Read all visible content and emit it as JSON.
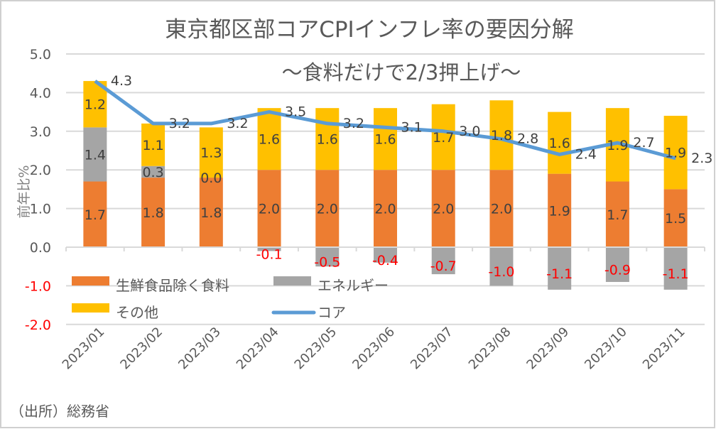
{
  "chart_data": {
    "type": "bar",
    "stacked": true,
    "title": "東京都区部コアCPIインフレ率の要因分解",
    "subtitle": "～食料だけで2/3押上げ～",
    "ylabel": "前年比%",
    "xlabel": "",
    "ylim": [
      -2.0,
      5.0
    ],
    "yticks": [
      "5.0",
      "4.0",
      "3.0",
      "2.0",
      "1.0",
      "0.0",
      "-1.0",
      "-2.0"
    ],
    "ytick_values": [
      5,
      4,
      3,
      2,
      1,
      0,
      -1,
      -2
    ],
    "negative_tick_color": "#FF0000",
    "grid": true,
    "legend_position": "bottom-left inside plot",
    "categories": [
      "2023/01",
      "2023/02",
      "2023/03",
      "2023/04",
      "2023/05",
      "2023/06",
      "2023/07",
      "2023/08",
      "2023/09",
      "2023/10",
      "2023/11"
    ],
    "series": [
      {
        "name": "生鮮食品除く食料",
        "kind": "bar",
        "color": "#ED7D31",
        "values": [
          1.7,
          1.8,
          1.8,
          2.0,
          2.0,
          2.0,
          2.0,
          2.0,
          1.9,
          1.7,
          1.5
        ]
      },
      {
        "name": "エネルギー",
        "kind": "bar",
        "color": "#A5A5A5",
        "values": [
          1.4,
          0.3,
          0.0,
          -0.1,
          -0.5,
          -0.4,
          -0.7,
          -1.0,
          -1.1,
          -0.9,
          -1.1
        ]
      },
      {
        "name": "その他",
        "kind": "bar",
        "color": "#FFC000",
        "values": [
          1.2,
          1.1,
          1.3,
          1.6,
          1.6,
          1.6,
          1.7,
          1.8,
          1.6,
          1.9,
          1.9
        ]
      },
      {
        "name": "コア",
        "kind": "line",
        "color": "#5B9BD5",
        "values": [
          4.3,
          3.2,
          3.2,
          3.5,
          3.2,
          3.1,
          3.0,
          2.8,
          2.4,
          2.7,
          2.3
        ]
      }
    ],
    "source_note": "（出所）総務省"
  }
}
